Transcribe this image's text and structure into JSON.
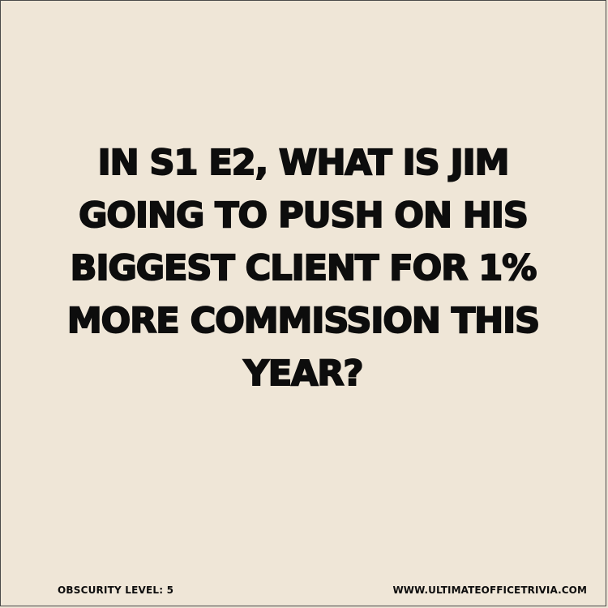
{
  "question": {
    "lines": [
      "IN S1 E2, WHAT IS JIM",
      "GOING TO PUSH ON HIS",
      "BIGGEST CLIENT FOR 1%",
      "MORE COMMISSION THIS",
      "YEAR?"
    ]
  },
  "footer": {
    "obscurity": "OBSCURITY LEVEL: 5",
    "website": "WWW.ULTIMATEOFFICETRIVIA.COM"
  },
  "colors": {
    "background": "#efe6d7",
    "text": "#0d0d0d"
  }
}
